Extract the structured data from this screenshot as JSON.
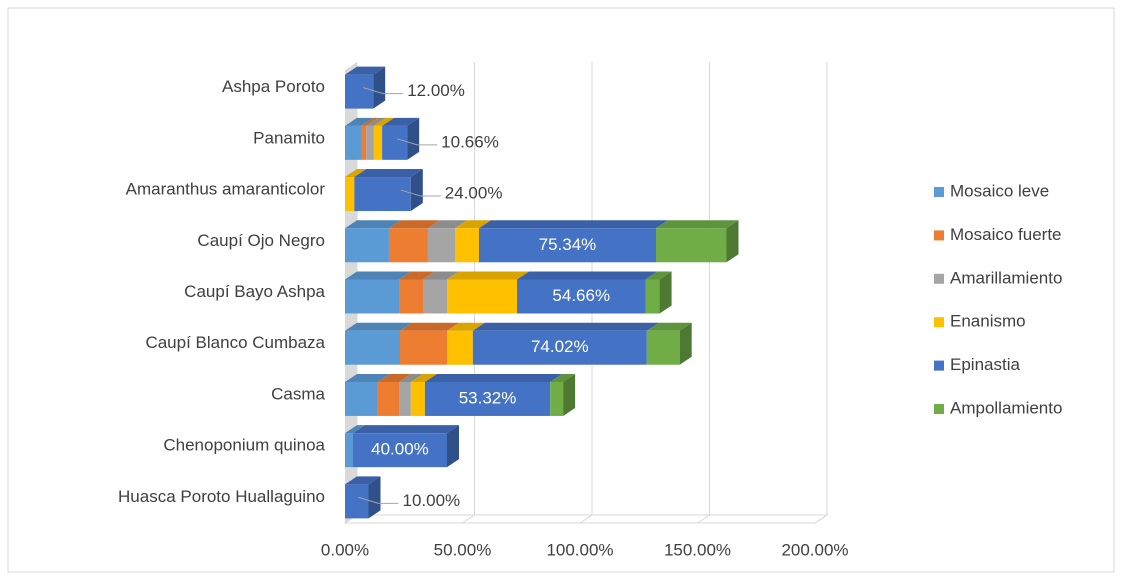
{
  "chart_data": {
    "type": "bar",
    "orientation": "horizontal",
    "stacked": true,
    "three_d": true,
    "categories": [
      "Ashpa Poroto",
      "Panamito",
      "Amaranthus amaranticolor",
      "Caupí Ojo Negro",
      "Caupí Bayo Ashpa",
      "Caupí Blanco Cumbaza",
      "Casma",
      "Chenoponium quinoa",
      "Huasca Poroto Huallaguino"
    ],
    "series": [
      {
        "name": "Mosaico leve",
        "color": "#5b9bd5",
        "values": [
          0,
          7,
          0,
          18.7,
          23,
          23.4,
          14,
          3.4,
          0
        ]
      },
      {
        "name": "Mosaico fuerte",
        "color": "#ed7d31",
        "values": [
          0,
          2,
          0,
          16.6,
          10.2,
          20,
          9,
          0,
          0
        ]
      },
      {
        "name": "Amarillamiento",
        "color": "#a5a5a5",
        "values": [
          0,
          3.3,
          0,
          11.5,
          10.2,
          0,
          5,
          0,
          0
        ]
      },
      {
        "name": "Enanismo",
        "color": "#ffc000",
        "values": [
          0,
          3.5,
          4,
          10.2,
          29.8,
          11,
          6,
          0,
          0
        ]
      },
      {
        "name": "Epinastia",
        "color": "#4472c4",
        "values": [
          12,
          10.66,
          24,
          75.34,
          54.66,
          74.02,
          53.32,
          40,
          10
        ],
        "value_labels": [
          "12.00%",
          "10.66%",
          "24.00%",
          "75.34%",
          "54.66%",
          "74.02%",
          "53.32%",
          "40.00%",
          "10.00%"
        ]
      },
      {
        "name": "Ampollamiento",
        "color": "#70ad47",
        "values": [
          0,
          0,
          0,
          30,
          6,
          14,
          5.5,
          0,
          0
        ]
      }
    ],
    "xlim": [
      0,
      200
    ],
    "xticks": [
      {
        "value": 0,
        "label": "0.00%"
      },
      {
        "value": 50,
        "label": "50.00%"
      },
      {
        "value": 100,
        "label": "100.00%"
      },
      {
        "value": 150,
        "label": "150.00%"
      },
      {
        "value": 200,
        "label": "200.00%"
      }
    ],
    "grid": true,
    "legend": "right"
  }
}
